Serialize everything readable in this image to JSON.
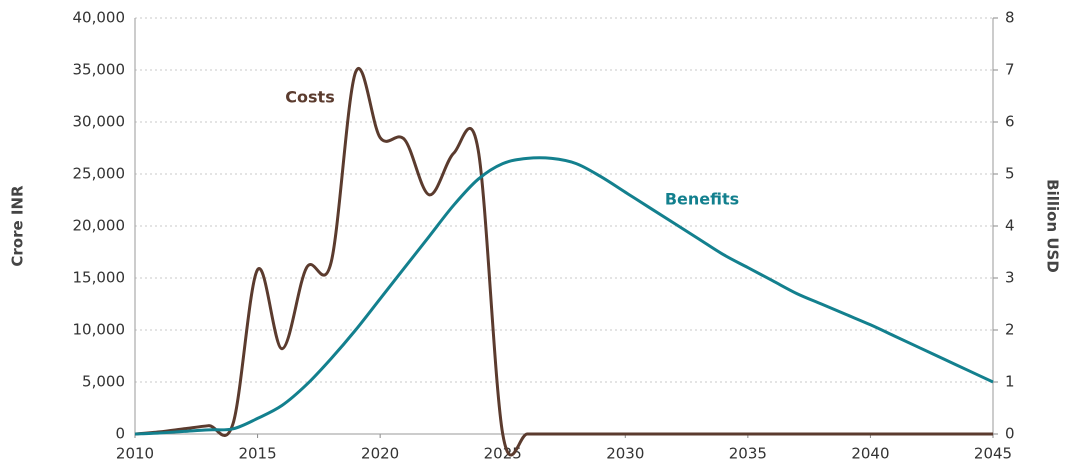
{
  "chart_data": {
    "type": "line",
    "x": [
      2010,
      2011,
      2012,
      2013,
      2014,
      2015,
      2016,
      2017,
      2018,
      2019,
      2020,
      2021,
      2022,
      2023,
      2024,
      2025,
      2026,
      2027,
      2028,
      2029,
      2030,
      2031,
      2032,
      2033,
      2034,
      2035,
      2036,
      2037,
      2038,
      2039,
      2040,
      2041,
      2042,
      2043,
      2044,
      2045
    ],
    "series": [
      {
        "name": "Costs",
        "color": "#5b3b2e",
        "values": [
          0,
          200,
          500,
          800,
          1000,
          15800,
          8200,
          16000,
          16500,
          34800,
          28500,
          28300,
          23000,
          27000,
          27300,
          0,
          0,
          0,
          0,
          0,
          0,
          0,
          0,
          0,
          0,
          0,
          0,
          0,
          0,
          0,
          0,
          0,
          0,
          0,
          0,
          0
        ]
      },
      {
        "name": "Benefits",
        "color": "#13808e",
        "axis": "y2",
        "values": [
          0,
          0.02,
          0.05,
          0.08,
          0.1,
          0.3,
          0.55,
          0.95,
          1.45,
          2.0,
          2.6,
          3.2,
          3.8,
          4.4,
          4.9,
          5.2,
          5.3,
          5.3,
          5.2,
          4.95,
          4.65,
          4.35,
          4.05,
          3.75,
          3.45,
          3.2,
          2.95,
          2.7,
          2.5,
          2.3,
          2.1,
          1.88,
          1.66,
          1.44,
          1.22,
          1.0
        ]
      }
    ],
    "xlim": [
      2010,
      2045
    ],
    "xticks": [
      2010,
      2015,
      2020,
      2025,
      2030,
      2035,
      2040,
      2045
    ],
    "ylim": [
      0,
      40000
    ],
    "yticks": [
      0,
      {
        "value": 5000,
        "label": "5,000"
      },
      {
        "value": 10000,
        "label": "10,000"
      },
      {
        "value": 15000,
        "label": "15,000"
      },
      {
        "value": 20000,
        "label": "20,000"
      },
      {
        "value": 25000,
        "label": "25,000"
      },
      {
        "value": 30000,
        "label": "30,000"
      },
      {
        "value": 35000,
        "label": "35,000"
      },
      {
        "value": 40000,
        "label": "40,000"
      }
    ],
    "y2lim": [
      0,
      8
    ],
    "y2ticks": [
      0,
      1,
      2,
      3,
      4,
      5,
      6,
      7,
      8
    ],
    "ylabel": "Crore INR",
    "y2label": "Billion USD",
    "grid": true
  }
}
